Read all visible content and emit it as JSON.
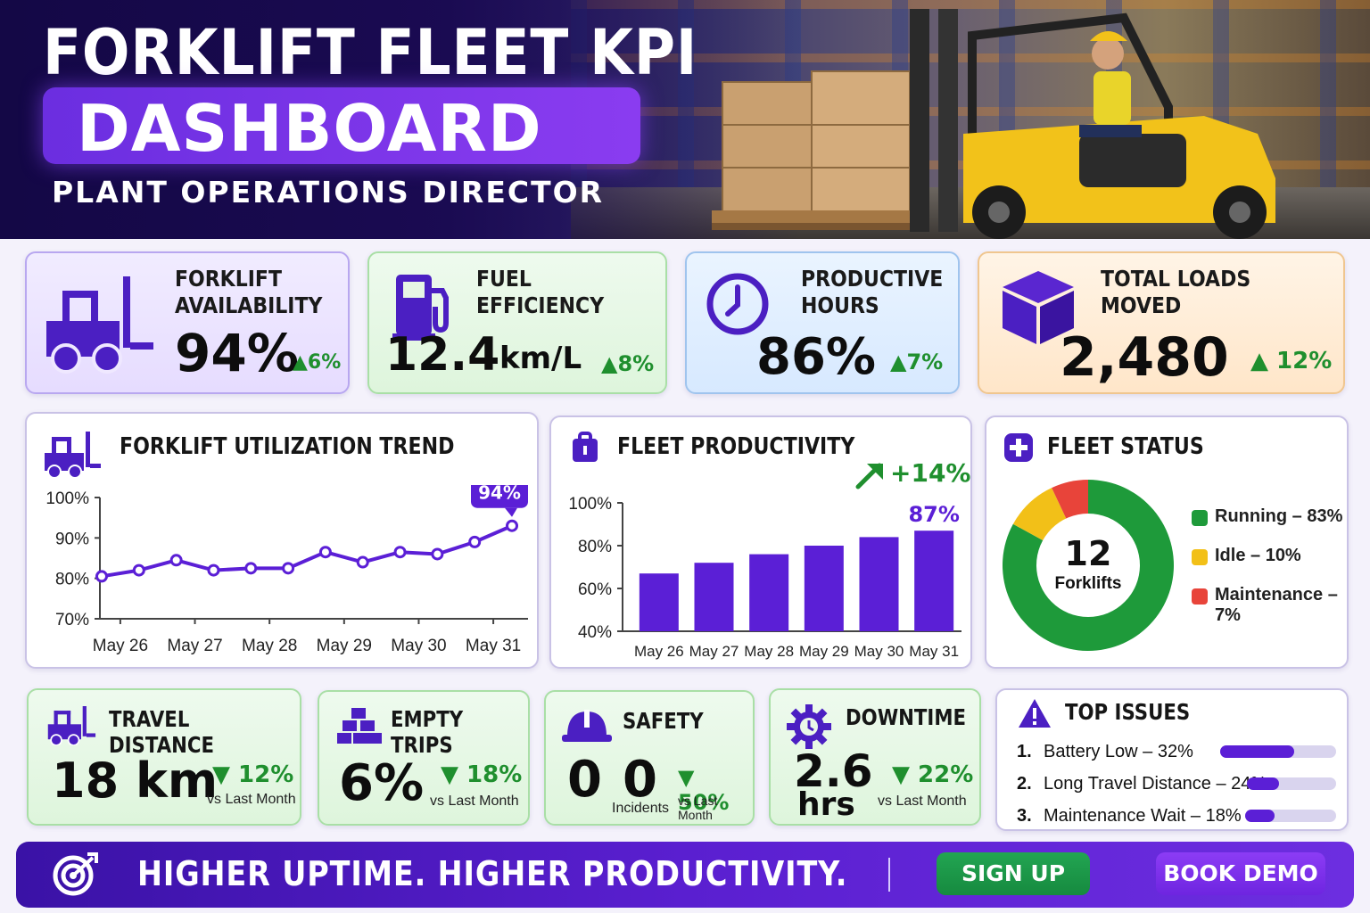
{
  "header": {
    "title_line1": "FORKLIFT FLEET KPI",
    "title_line2": "DASHBOARD",
    "subtitle": "PLANT OPERATIONS DIRECTOR"
  },
  "kpis": {
    "availability": {
      "label1": "FORKLIFT",
      "label2": "AVAILABILITY",
      "value": "94%",
      "delta": "▲6%"
    },
    "fuel": {
      "label1": "FUEL",
      "label2": "EFFICIENCY",
      "value": "12.4",
      "unit": "km/L",
      "delta": "▲8%"
    },
    "productive": {
      "label1": "PRODUCTIVE",
      "label2": "HOURS",
      "value": "86%",
      "delta": "▲7%"
    },
    "loads": {
      "label1": "TOTAL LOADS",
      "label2": "MOVED",
      "value": "2,480",
      "delta": "▲ 12%"
    }
  },
  "utilization": {
    "title": "FORKLIFT UTILIZATION TREND",
    "y_ticks": [
      "100%",
      "90%",
      "80%",
      "70%"
    ],
    "x_labels": [
      "May 26",
      "May 27",
      "May 28",
      "May 29",
      "May 30",
      "May 31"
    ],
    "callout": "94%"
  },
  "productivity": {
    "title": "FLEET PRODUCTIVITY",
    "trend": "+14%",
    "y_ticks": [
      "100%",
      "80%",
      "60%",
      "40%"
    ],
    "top_label": "87%"
  },
  "fleet_status": {
    "title": "FLEET STATUS",
    "center_value": "12",
    "center_label": "Forklifts",
    "legend": [
      {
        "label": "Running – 83%",
        "color": "#1e9a3a"
      },
      {
        "label": "Idle – 10%",
        "color": "#f2c018"
      },
      {
        "label": "Maintenance – 7%",
        "color": "#e8443a"
      }
    ]
  },
  "bottom_kpis": {
    "travel": {
      "title": "TRAVEL DISTANCE",
      "value": "18 km",
      "delta": "▼ 12%",
      "note": "vs Last Month"
    },
    "empty": {
      "title": "EMPTY TRIPS",
      "value": "6%",
      "delta": "▼ 18%",
      "note": "vs Last Month"
    },
    "safety": {
      "title": "SAFETY",
      "value": "0",
      "value2": "0",
      "sub": "Incidents",
      "delta": "▼ 50%",
      "note": "vs Last Month"
    },
    "downtime": {
      "title": "DOWNTIME",
      "value": "2.6",
      "unit": "hrs",
      "delta": "▼ 22%",
      "note": "vs Last Month"
    }
  },
  "top_issues": {
    "title": "TOP ISSUES",
    "items": [
      {
        "num": "1.",
        "label": "Battery Low – 32%",
        "pct": 0.64
      },
      {
        "num": "2.",
        "label": "Long Travel Distance – 24%",
        "pct": 0.36
      },
      {
        "num": "3.",
        "label": "Maintenance Wait – 18%",
        "pct": 0.32
      }
    ]
  },
  "footer": {
    "tagline": "HIGHER UPTIME.  HIGHER PRODUCTIVITY.",
    "signup": "SIGN UP",
    "demo": "BOOK DEMO"
  },
  "chart_data": [
    {
      "type": "line",
      "title": "FORKLIFT UTILIZATION TREND",
      "x": [
        "",
        "May 26",
        "",
        "May 27",
        "",
        "May 28",
        "",
        "May 29",
        "",
        "May 30",
        "",
        "May 31"
      ],
      "series": [
        {
          "values": [
            80.5,
            82,
            84.5,
            82,
            82.5,
            82.5,
            86.5,
            84,
            86.5,
            86,
            89,
            93
          ]
        }
      ],
      "ylim": [
        70,
        100
      ],
      "x_tick_labels": [
        "May 26",
        "May 27",
        "May 28",
        "May 29",
        "May 30",
        "May 31"
      ],
      "y_tick_labels": [
        "70%",
        "80%",
        "90%",
        "100%"
      ],
      "annotation": "94%",
      "grid": false
    },
    {
      "type": "bar",
      "title": "FLEET PRODUCTIVITY",
      "categories": [
        "May 26",
        "May 27",
        "May 28",
        "May 29",
        "May 30",
        "May 31"
      ],
      "values": [
        67,
        72,
        76,
        80,
        84,
        87
      ],
      "ylim": [
        40,
        100
      ],
      "y_tick_labels": [
        "40%",
        "60%",
        "80%",
        "100%"
      ],
      "annotation": "87%",
      "trend_label": "+14%",
      "grid": false
    },
    {
      "type": "pie",
      "title": "FLEET STATUS",
      "categories": [
        "Running",
        "Idle",
        "Maintenance"
      ],
      "values": [
        83,
        10,
        7
      ],
      "colors": [
        "#1e9a3a",
        "#f2c018",
        "#e8443a"
      ],
      "center_text": "12 Forklifts"
    }
  ]
}
